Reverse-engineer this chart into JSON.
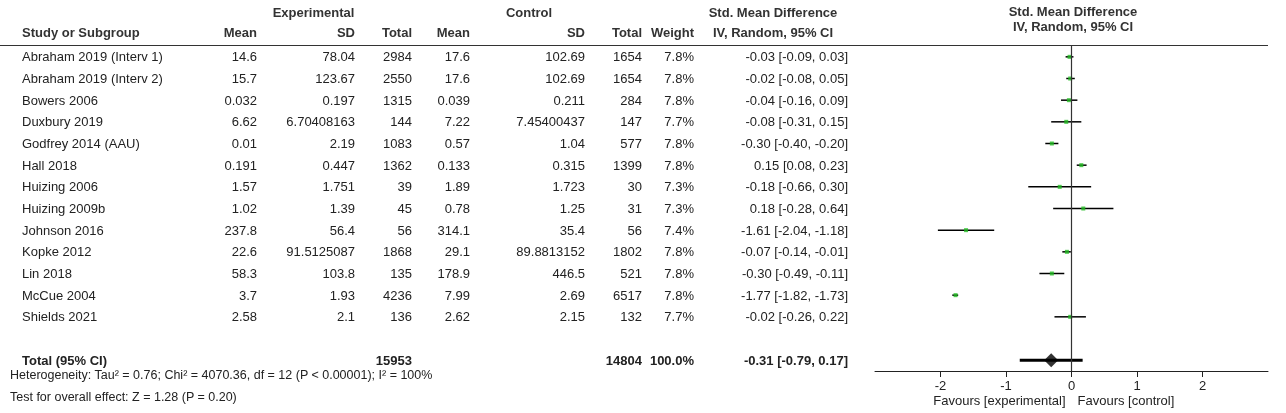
{
  "chart_data": [
    {
      "type": "other",
      "ylabel": "Study or Subgroup",
      "categories": [
        "Mean",
        "SD",
        "Total",
        "Mean",
        "SD",
        "Total",
        "Weight",
        "IV, Random, 95% CI"
      ],
      "y_categories": [
        "Abraham 2019 (Interv 1)",
        "Abraham 2019 (Interv 2)",
        "Bowers 2006",
        "Duxbury 2019",
        "Godfrey 2014 (AAU)",
        "Hall 2018",
        "Huizing 2006",
        "Huizing 2009b",
        "Johnson 2016",
        "Kopke 2012",
        "Lin 2018",
        "McCue 2004",
        "Shields 2021",
        null,
        "Total (95% CI)"
      ],
      "cell_labels": [
        [
          "14.6",
          "78.04",
          "2984",
          "17.6",
          "102.69",
          "1654",
          "7.8%",
          "-0.03 [-0.09, 0.03]"
        ],
        [
          "15.7",
          "123.67",
          "2550",
          "17.6",
          "102.69",
          "1654",
          "7.8%",
          "-0.02 [-0.08, 0.05]"
        ],
        [
          "0.032",
          "0.197",
          "1315",
          "0.039",
          "0.211",
          "284",
          "7.8%",
          "-0.04 [-0.16, 0.09]"
        ],
        [
          "6.62",
          "6.70408163",
          "144",
          "7.22",
          "7.45400437",
          "147",
          "7.7%",
          "-0.08 [-0.31, 0.15]"
        ],
        [
          "0.01",
          "2.19",
          "1083",
          "0.57",
          "1.04",
          "577",
          "7.8%",
          "-0.30 [-0.40, -0.20]"
        ],
        [
          "0.191",
          "0.447",
          "1362",
          "0.133",
          "0.315",
          "1399",
          "7.8%",
          "0.15 [0.08, 0.23]"
        ],
        [
          "1.57",
          "1.751",
          "39",
          "1.89",
          "1.723",
          "30",
          "7.3%",
          "-0.18 [-0.66, 0.30]"
        ],
        [
          "1.02",
          "1.39",
          "45",
          "0.78",
          "1.25",
          "31",
          "7.3%",
          "0.18 [-0.28, 0.64]"
        ],
        [
          "237.8",
          "56.4",
          "56",
          "314.1",
          "35.4",
          "56",
          "7.4%",
          "-1.61 [-2.04, -1.18]"
        ],
        [
          "22.6",
          "91.5125087",
          "1868",
          "29.1",
          "89.8813152",
          "1802",
          "7.8%",
          "-0.07 [-0.14, -0.01]"
        ],
        [
          "58.3",
          "103.8",
          "135",
          "178.9",
          "446.5",
          "521",
          "7.8%",
          "-0.30 [-0.49, -0.11]"
        ],
        [
          "3.7",
          "1.93",
          "4236",
          "7.99",
          "2.69",
          "6517",
          "7.8%",
          "-1.77 [-1.82, -1.73]"
        ],
        [
          "2.58",
          "2.1",
          "136",
          "2.62",
          "2.15",
          "132",
          "7.7%",
          "-0.02 [-0.26, 0.22]"
        ],
        [
          null,
          null,
          null,
          null,
          null,
          null,
          null,
          null
        ],
        [
          null,
          null,
          "15953",
          null,
          null,
          "14804",
          "100.0%",
          "-0.31 [-0.79, 0.17]"
        ]
      ],
      "annotations": [
        "Experimental",
        "Control",
        "Std. Mean Difference",
        "Heterogeneity: Tau² = 0.76; Chi² = 4070.36, df = 12 (P < 0.00001); I² = 100%",
        "Test for overall effect: Z = 1.28 (P = 0.20)"
      ]
    },
    {
      "type": "scatter",
      "title": "Std. Mean Difference",
      "subtitle": "IV, Random, 95% CI",
      "orientation": "horizontal",
      "tick_labels": "x",
      "categories": [
        null,
        null,
        null,
        null,
        null,
        null,
        null,
        null,
        null,
        null,
        null,
        null,
        null,
        null,
        null
      ],
      "xlim": [
        -3,
        3
      ],
      "xticks": [
        -2,
        -1,
        0,
        1,
        2
      ],
      "series": [
        {
          "color": "#22bb22",
          "marker": "square",
          "values": [
            -0.03,
            -0.02,
            -0.04,
            -0.08,
            -0.3,
            0.15,
            -0.18,
            0.18,
            -1.61,
            -0.07,
            -0.3,
            -1.77,
            -0.02,
            null,
            null
          ],
          "errors": [
            [
              -0.09,
              0.03
            ],
            [
              -0.08,
              0.05
            ],
            [
              -0.16,
              0.09
            ],
            [
              -0.31,
              0.15
            ],
            [
              -0.4,
              -0.2
            ],
            [
              0.08,
              0.23
            ],
            [
              -0.66,
              0.3
            ],
            [
              -0.28,
              0.64
            ],
            [
              -2.04,
              -1.18
            ],
            [
              -0.14,
              -0.01
            ],
            [
              -0.49,
              -0.11
            ],
            [
              -1.82,
              -1.73
            ],
            [
              -0.26,
              0.22
            ],
            null,
            null
          ]
        },
        {
          "color": "#000000",
          "marker": "diamond",
          "values": [
            null,
            null,
            null,
            null,
            null,
            null,
            null,
            null,
            null,
            null,
            null,
            null,
            null,
            null,
            -0.31
          ],
          "errors": [
            null,
            null,
            null,
            null,
            null,
            null,
            null,
            null,
            null,
            null,
            null,
            null,
            null,
            null,
            [
              -0.79,
              0.17
            ]
          ]
        }
      ],
      "ref_lines": [
        {
          "axis": "x",
          "value": 0
        }
      ],
      "annotations": [
        "Favours [experimental]",
        "Favours [control]"
      ]
    }
  ]
}
